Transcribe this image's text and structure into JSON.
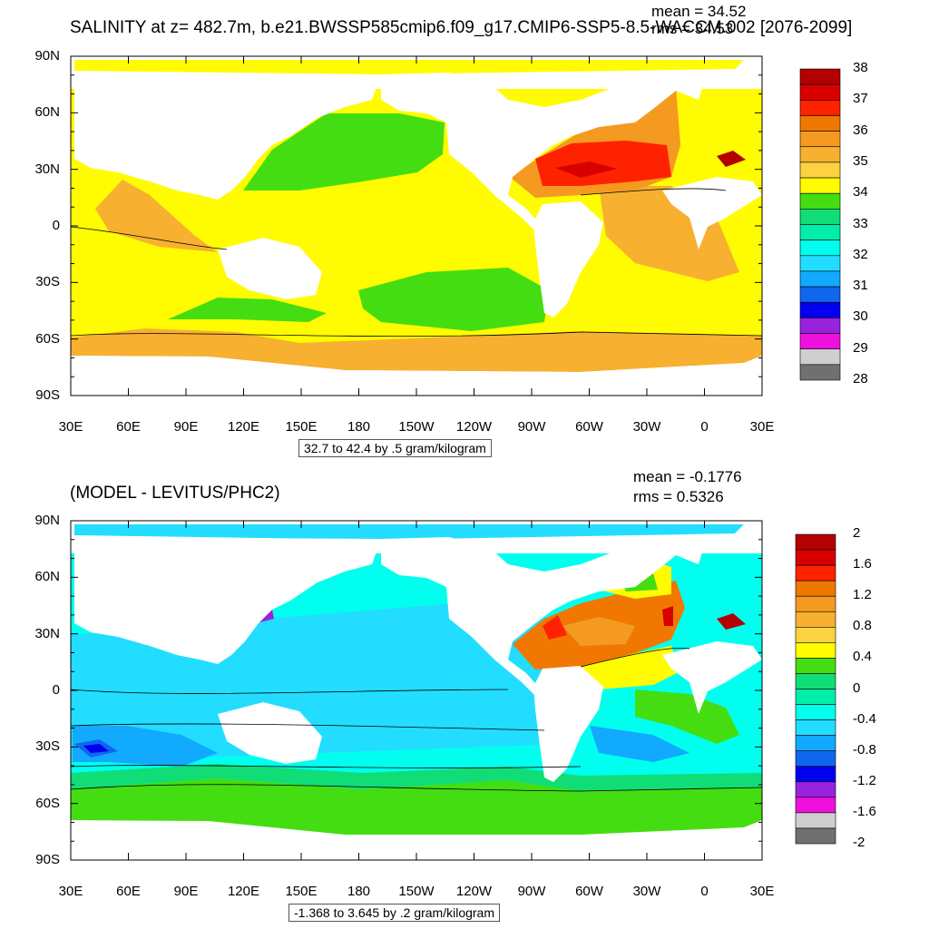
{
  "top": {
    "title": "SALINITY at z= 482.7m, b.e21.BWSSP585cmip6.f09_g17.CMIP6-SSP5-8.5-WACCM.002 [2076-2099]",
    "mean": "mean = 34.52",
    "rms": "rms = 34.53",
    "contour_note": "32.7 to 42.4 by .5 gram/kilogram",
    "colorbar_labels": [
      "38",
      "37",
      "36",
      "35",
      "34",
      "33",
      "32",
      "31",
      "30",
      "29",
      "28"
    ],
    "colorbar_colors": [
      "#b30000",
      "#d90000",
      "#ff2200",
      "#f07800",
      "#f59a20",
      "#f7b030",
      "#fcd240",
      "#fffb00",
      "#44dd11",
      "#11dd77",
      "#00eeaa",
      "#00ffee",
      "#22ddff",
      "#11aaff",
      "#1166ee",
      "#0000ee",
      "#9922dd",
      "#ee11dd",
      "#cfcfcf",
      "#707070"
    ]
  },
  "bottom": {
    "title": "(MODEL - LEVITUS/PHC2)",
    "mean": "mean = -0.1776",
    "rms": "rms = 0.5326",
    "contour_note": "-1.368 to 3.645 by .2 gram/kilogram",
    "colorbar_labels": [
      "2",
      "1.6",
      "1.2",
      "0.8",
      "0.4",
      "0",
      "-0.4",
      "-0.8",
      "-1.2",
      "-1.6",
      "-2"
    ],
    "colorbar_colors": [
      "#b30000",
      "#d90000",
      "#ff2200",
      "#f07800",
      "#f59a20",
      "#f7b030",
      "#fcd240",
      "#fffb00",
      "#44dd11",
      "#11dd77",
      "#00eeaa",
      "#00ffee",
      "#22ddff",
      "#11aaff",
      "#1166ee",
      "#0000ee",
      "#9922dd",
      "#ee11dd",
      "#cfcfcf",
      "#707070"
    ]
  },
  "lat_labels": [
    "90N",
    "60N",
    "30N",
    "0",
    "30S",
    "60S",
    "90S"
  ],
  "lon_labels": [
    "30E",
    "60E",
    "90E",
    "120E",
    "150E",
    "180",
    "150W",
    "120W",
    "90W",
    "60W",
    "30W",
    "0",
    "30E"
  ]
}
